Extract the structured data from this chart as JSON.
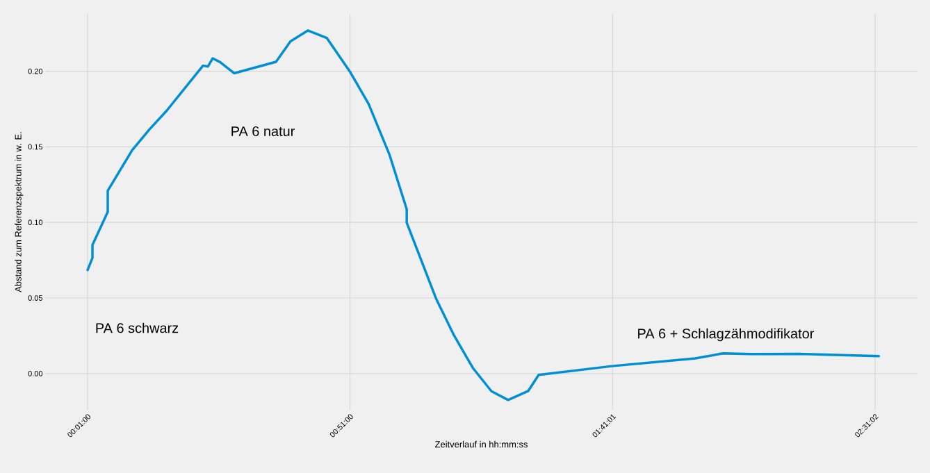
{
  "chart_data": {
    "type": "line",
    "xlabel": "Zeitverlauf in hh:mm:ss",
    "ylabel": "Abstand zum Referenzspektrum in w. E.",
    "x": [
      0.0167,
      0.0321,
      0.0321,
      0.0807,
      0.0807,
      0.158,
      0.213,
      0.268,
      0.383,
      0.399,
      0.414,
      0.438,
      0.482,
      0.615,
      0.661,
      0.716,
      0.776,
      0.849,
      0.909,
      0.975,
      1.03,
      1.03,
      1.123,
      1.18,
      1.24,
      1.299,
      1.352,
      1.416,
      1.449,
      1.681,
      1.946,
      2.034,
      2.123,
      2.277,
      2.529
    ],
    "series": [
      {
        "color": "#008fd5",
        "values": [
          0.0685,
          0.0765,
          0.085,
          0.107,
          0.121,
          0.1477,
          0.1615,
          0.174,
          0.2037,
          0.2032,
          0.2086,
          0.206,
          0.1987,
          0.2063,
          0.2198,
          0.227,
          0.2221,
          0.2,
          0.1784,
          0.145,
          0.1087,
          0.0998,
          0.0497,
          0.0253,
          0.0037,
          -0.0117,
          -0.0175,
          -0.0115,
          -0.0009,
          0.0049,
          0.01,
          0.0133,
          0.0129,
          0.013,
          0.0115
        ]
      }
    ],
    "xlim": [
      -0.118,
      2.652
    ],
    "ylim": [
      -0.024,
      0.238
    ],
    "xticks": [
      {
        "value": 0.016667,
        "label": "00:01:00"
      },
      {
        "value": 0.85,
        "label": "00:51:00"
      },
      {
        "value": 1.683611,
        "label": "01:41:01"
      },
      {
        "value": 2.517222,
        "label": "02:31:02"
      }
    ],
    "yticks": [
      {
        "value": 0,
        "label": "0.00"
      },
      {
        "value": 0.05,
        "label": "0.05"
      },
      {
        "value": 0.1,
        "label": "0.10"
      },
      {
        "value": 0.15,
        "label": "0.15"
      },
      {
        "value": 0.2,
        "label": "0.20"
      }
    ],
    "annotations": [
      "PA 6 schwarz",
      "PA 6 natur",
      "PA 6 + Schlagzähmodifikator"
    ],
    "grid": true,
    "marker": "none",
    "line_style": "solid"
  }
}
